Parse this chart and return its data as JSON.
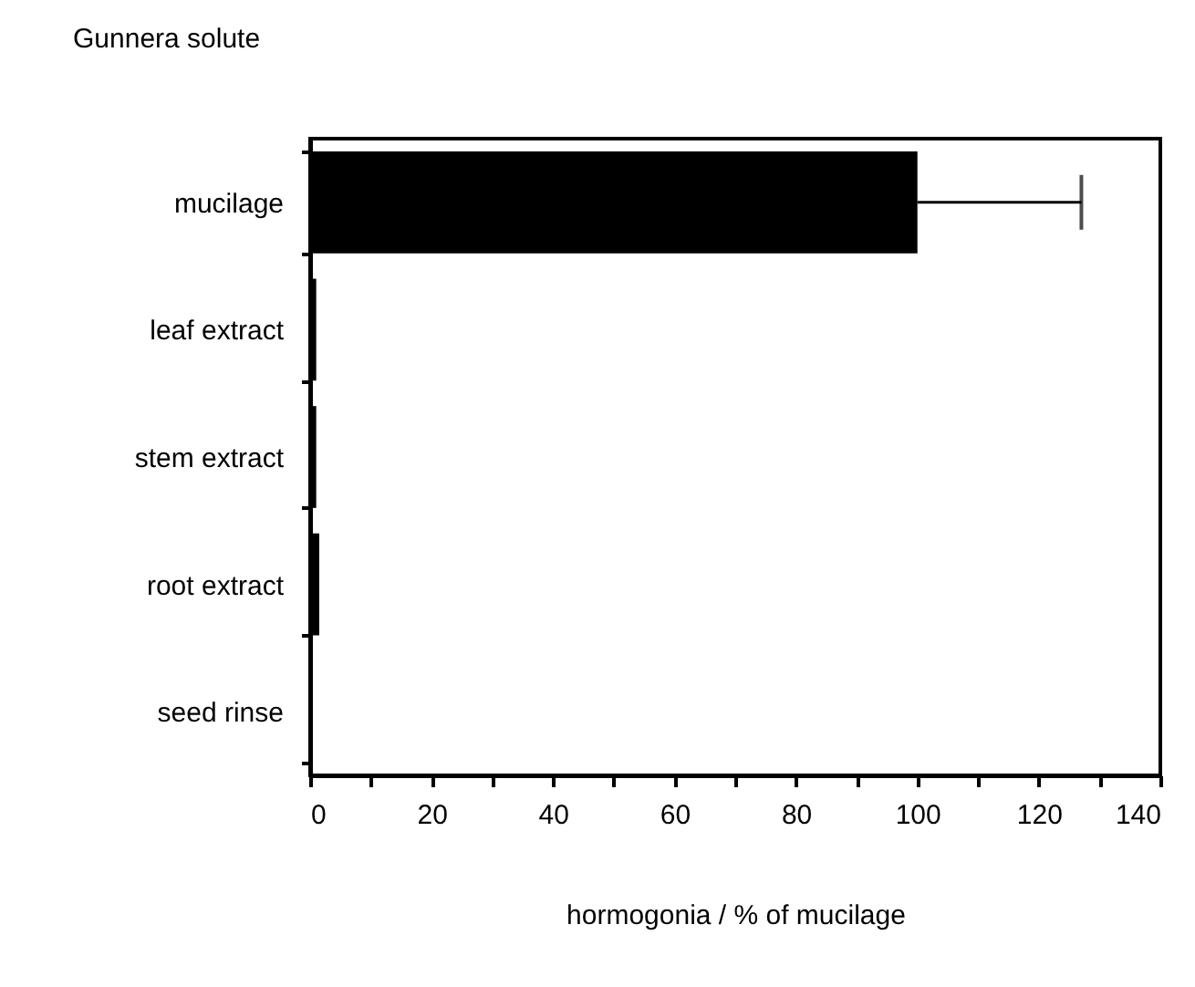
{
  "chart_data": {
    "type": "bar",
    "orientation": "horizontal",
    "title": "Gunnera solute",
    "xlabel": "hormogonia / % of mucilage",
    "categories": [
      "mucilage",
      "leaf extract",
      "stem extract",
      "root extract",
      "seed rinse"
    ],
    "values": [
      100,
      1,
      1,
      1.5,
      0
    ],
    "color": "#000000",
    "errors": [
      [
        100,
        127
      ],
      null,
      null,
      null,
      null
    ],
    "xlim": [
      0,
      140
    ],
    "xticks": [
      0,
      {
        "value": 10,
        "label": null
      },
      20,
      {
        "value": 30,
        "label": null
      },
      40,
      {
        "value": 50,
        "label": null
      },
      60,
      {
        "value": 70,
        "label": null
      },
      80,
      {
        "value": 90,
        "label": null
      },
      100,
      {
        "value": 110,
        "label": null
      },
      120,
      {
        "value": 130,
        "label": null
      },
      140
    ],
    "grid": false
  }
}
